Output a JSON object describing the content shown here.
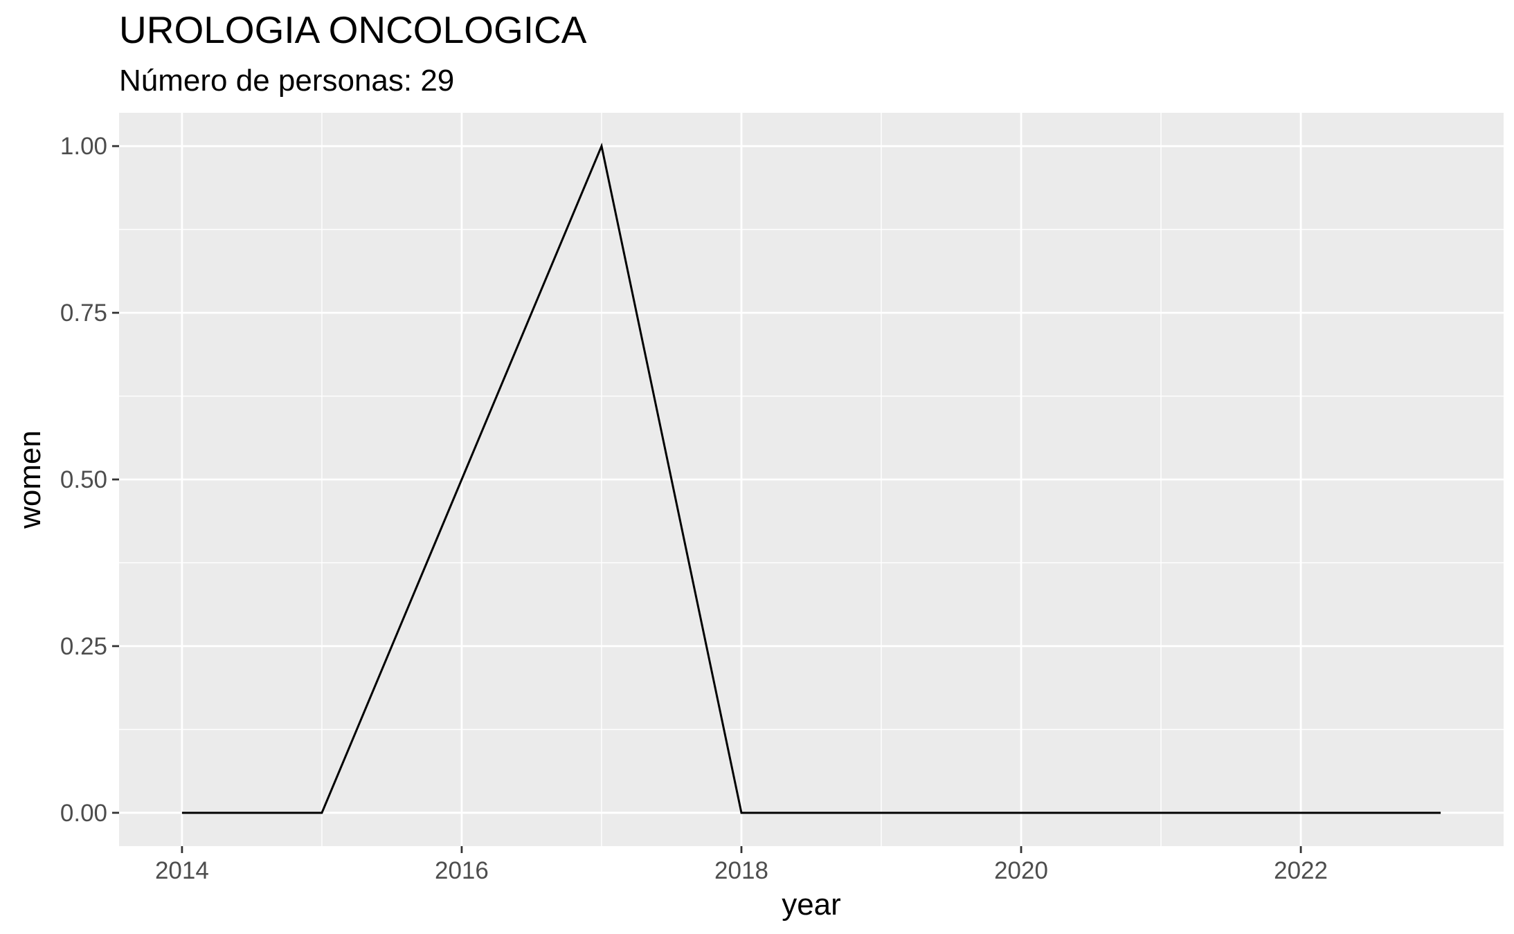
{
  "chart_data": {
    "type": "line",
    "title": "UROLOGIA ONCOLOGICA",
    "subtitle": "Número de personas: 29",
    "xlabel": "year",
    "ylabel": "women",
    "x": [
      2014,
      2015,
      2016,
      2017,
      2018,
      2019,
      2020,
      2021,
      2022,
      2023
    ],
    "series": [
      {
        "values": [
          0,
          0,
          0.5,
          1,
          0,
          0,
          0,
          0,
          0,
          0
        ]
      }
    ],
    "xlim": [
      2013.55,
      2023.45
    ],
    "ylim": [
      -0.05,
      1.05
    ],
    "xticks": [
      2014,
      2016,
      2018,
      2020,
      2022
    ],
    "xtick_labels": [
      "2014",
      "2016",
      "2018",
      "2020",
      "2022"
    ],
    "yticks": [
      0,
      0.25,
      0.5,
      0.75,
      1
    ],
    "ytick_labels": [
      "0.00",
      "0.25",
      "0.50",
      "0.75",
      "1.00"
    ],
    "grid": true,
    "colors": {
      "panel_bg": "#ebebeb",
      "grid": "#ffffff",
      "line": "#000000",
      "tick_text": "#4d4d4d"
    }
  }
}
